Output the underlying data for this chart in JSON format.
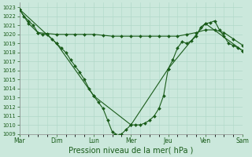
{
  "bg_color": "#cbe8dc",
  "grid_color": "#b0d8c8",
  "line_color": "#1a5c1a",
  "marker_color": "#1a5c1a",
  "xlabel": "Pression niveau de la mer( hPa )",
  "xlabel_fontsize": 7,
  "ylim": [
    1009,
    1023.5
  ],
  "yticks": [
    1009,
    1010,
    1011,
    1012,
    1013,
    1014,
    1015,
    1016,
    1017,
    1018,
    1019,
    1020,
    1021,
    1022,
    1023
  ],
  "xtick_labels": [
    "Mar",
    "Dim",
    "Lun",
    "Mer",
    "Jeu",
    "Ven",
    "Sam"
  ],
  "xtick_positions": [
    0,
    4,
    8,
    12,
    16,
    20,
    24
  ],
  "series1": {
    "x": [
      0,
      0.5,
      1,
      1.5,
      2,
      2.5,
      3,
      3.5,
      4,
      4.5,
      5,
      5.5,
      6,
      6.5,
      7,
      7.5,
      8,
      8.5,
      9,
      9.5,
      10,
      10.3,
      10.7,
      11,
      11.5,
      12,
      12.5,
      13,
      13.5,
      14,
      14.5,
      15,
      15.5,
      16,
      16.5,
      17,
      17.5,
      18,
      18.5,
      19,
      19.5,
      20,
      20.5,
      21,
      21.5,
      22,
      22.5,
      23,
      23.5,
      24
    ],
    "y": [
      1022.8,
      1022.0,
      1021.5,
      1021.0,
      1020.2,
      1020.0,
      1020.0,
      1019.5,
      1019.0,
      1018.5,
      1018.0,
      1017.2,
      1016.5,
      1015.8,
      1015.0,
      1014.0,
      1013.2,
      1012.5,
      1011.8,
      1010.5,
      1009.2,
      1009.0,
      1008.9,
      1009.0,
      1009.5,
      1010.0,
      1010.0,
      1010.0,
      1010.2,
      1010.5,
      1011.0,
      1011.8,
      1013.2,
      1016.2,
      1017.2,
      1018.5,
      1019.2,
      1019.0,
      1019.3,
      1019.8,
      1020.8,
      1021.2,
      1021.3,
      1021.5,
      1020.5,
      1019.8,
      1019.0,
      1018.8,
      1018.5,
      1018.2
    ]
  },
  "series2": {
    "x": [
      0,
      1,
      2,
      3,
      4,
      5,
      6,
      7,
      8,
      9,
      10,
      11,
      12,
      13,
      14,
      15,
      16,
      17,
      18,
      19,
      20,
      21,
      22,
      23,
      24
    ],
    "y": [
      1022.8,
      1021.2,
      1020.2,
      1020.1,
      1020.0,
      1020.0,
      1020.0,
      1020.0,
      1020.0,
      1019.9,
      1019.8,
      1019.8,
      1019.8,
      1019.8,
      1019.8,
      1019.8,
      1019.8,
      1019.8,
      1020.0,
      1020.2,
      1020.5,
      1020.5,
      1020.2,
      1019.5,
      1018.8
    ]
  },
  "series3": {
    "x": [
      0,
      4,
      8,
      12,
      16,
      20,
      24
    ],
    "y": [
      1022.8,
      1019.0,
      1013.2,
      1010.0,
      1016.2,
      1021.2,
      1018.2
    ]
  }
}
